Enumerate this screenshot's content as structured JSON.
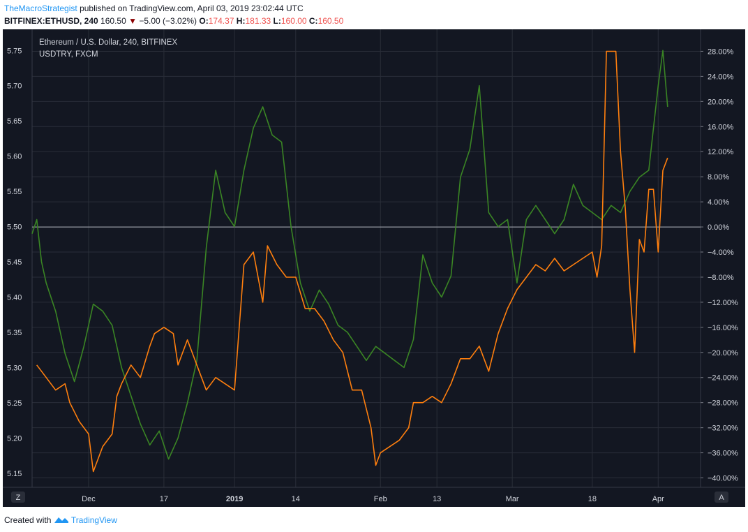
{
  "header": {
    "author": "TheMacroStrategist",
    "published_text": "published on TradingView.com, April 03, 2019 23:02:44 UTC",
    "symbol": "BITFINEX:ETHUSD, 240",
    "last_price": "160.50",
    "change_text": "−5.00 (−3.02%)",
    "o_label": "O:",
    "o_value": "174.37",
    "h_label": "H:",
    "h_value": "181.33",
    "l_label": "L:",
    "l_value": "160.00",
    "c_label": "C:",
    "c_value": "160.50"
  },
  "footer": {
    "created_with": "Created with",
    "brand": "TradingView"
  },
  "colors": {
    "background": "#131722",
    "grid": "#2a2e39",
    "text": "#d1d4dc",
    "ethereum_line": "#ff7f0e",
    "usdtry_line": "#3a8524",
    "zero_line": "#b2b5be",
    "accent": "#2196f3"
  },
  "chart_data": {
    "type": "line",
    "legend_placement": "top-left",
    "grid": true,
    "legend": [
      "Ethereum / U.S. Dollar, 240, BITFINEX",
      "USDTRY, FXCM"
    ],
    "x_ticks": [
      "Dec",
      "17",
      "2019",
      "14",
      "Feb",
      "13",
      "Mar",
      "18",
      "Apr"
    ],
    "x_range": [
      "2018-11-19",
      "2019-04-10"
    ],
    "left_axis": {
      "ticks": [
        "5.75",
        "5.70",
        "5.65",
        "5.60",
        "5.55",
        "5.50",
        "5.45",
        "5.40",
        "5.35",
        "5.30",
        "5.25",
        "5.20",
        "5.15"
      ],
      "ylim": [
        5.13,
        5.78
      ]
    },
    "right_axis": {
      "ticks": [
        "28.00%",
        "24.00%",
        "20.00%",
        "16.00%",
        "12.00%",
        "8.00%",
        "4.00%",
        "0.00%",
        "−4.00%",
        "−8.00%",
        "−12.00%",
        "−16.00%",
        "−20.00%",
        "−24.00%",
        "−28.00%",
        "−32.00%",
        "−36.00%",
        "−40.00%"
      ],
      "ylim": [
        -41.5,
        31.5
      ]
    },
    "axis_corner_labels": {
      "left": "Z",
      "right": "A"
    },
    "series": [
      {
        "name": "Ethereum / U.S. Dollar, 240, BITFINEX",
        "axis": "right",
        "unit": "%",
        "x": [
          "2018-11-20",
          "2018-11-21",
          "2018-11-22",
          "2018-11-24",
          "2018-11-26",
          "2018-11-27",
          "2018-11-29",
          "2018-12-01",
          "2018-12-02",
          "2018-12-04",
          "2018-12-06",
          "2018-12-07",
          "2018-12-08",
          "2018-12-10",
          "2018-12-12",
          "2018-12-14",
          "2018-12-15",
          "2018-12-17",
          "2018-12-19",
          "2018-12-20",
          "2018-12-22",
          "2018-12-24",
          "2018-12-26",
          "2018-12-28",
          "2018-12-30",
          "2019-01-01",
          "2019-01-03",
          "2019-01-05",
          "2019-01-07",
          "2019-01-08",
          "2019-01-10",
          "2019-01-12",
          "2019-01-14",
          "2019-01-16",
          "2019-01-18",
          "2019-01-20",
          "2019-01-22",
          "2019-01-24",
          "2019-01-26",
          "2019-01-28",
          "2019-01-30",
          "2019-01-31",
          "2019-02-01",
          "2019-02-03",
          "2019-02-05",
          "2019-02-07",
          "2019-02-08",
          "2019-02-10",
          "2019-02-12",
          "2019-02-14",
          "2019-02-16",
          "2019-02-18",
          "2019-02-20",
          "2019-02-22",
          "2019-02-24",
          "2019-02-26",
          "2019-02-28",
          "2019-03-02",
          "2019-03-04",
          "2019-03-06",
          "2019-03-08",
          "2019-03-10",
          "2019-03-12",
          "2019-03-14",
          "2019-03-16",
          "2019-03-18",
          "2019-03-19",
          "2019-03-20",
          "2019-03-21",
          "2019-03-22",
          "2019-03-23",
          "2019-03-24",
          "2019-03-25",
          "2019-03-26",
          "2019-03-27",
          "2019-03-28",
          "2019-03-29",
          "2019-03-30",
          "2019-03-31",
          "2019-04-01",
          "2019-04-02",
          "2019-04-03"
        ],
        "values": [
          -22,
          -23,
          -24,
          -26,
          -25,
          -28,
          -31,
          -33,
          -39,
          -35,
          -33,
          -27,
          -25,
          -22,
          -24,
          -19,
          -17,
          -16,
          -17,
          -22,
          -18,
          -22,
          -26,
          -24,
          -25,
          -26,
          -6,
          -4,
          -12,
          -3,
          -6,
          -8,
          -8,
          -13,
          -13,
          -15,
          -18,
          -20,
          -26,
          -26,
          -32,
          -38,
          -36,
          -35,
          -34,
          -32,
          -28,
          -28,
          -27,
          -28,
          -25,
          -21,
          -21,
          -19,
          -23,
          -17,
          -13,
          -10,
          -8,
          -6,
          -7,
          -5,
          -7,
          -6,
          -5,
          -4,
          -8,
          -3,
          28,
          28,
          28,
          12,
          3,
          -10,
          -20,
          -2,
          -4,
          6,
          6,
          -4,
          9,
          11
        ]
      },
      {
        "name": "USDTRY, FXCM",
        "axis": "left",
        "unit": "TRY",
        "x": [
          "2018-11-19",
          "2018-11-20",
          "2018-11-21",
          "2018-11-22",
          "2018-11-24",
          "2018-11-26",
          "2018-11-28",
          "2018-11-30",
          "2018-12-02",
          "2018-12-04",
          "2018-12-06",
          "2018-12-08",
          "2018-12-10",
          "2018-12-12",
          "2018-12-14",
          "2018-12-16",
          "2018-12-18",
          "2018-12-20",
          "2018-12-22",
          "2018-12-24",
          "2018-12-26",
          "2018-12-28",
          "2018-12-30",
          "2019-01-01",
          "2019-01-03",
          "2019-01-05",
          "2019-01-07",
          "2019-01-09",
          "2019-01-11",
          "2019-01-13",
          "2019-01-15",
          "2019-01-17",
          "2019-01-19",
          "2019-01-21",
          "2019-01-23",
          "2019-01-25",
          "2019-01-27",
          "2019-01-29",
          "2019-01-31",
          "2019-02-02",
          "2019-02-04",
          "2019-02-06",
          "2019-02-08",
          "2019-02-10",
          "2019-02-12",
          "2019-02-14",
          "2019-02-16",
          "2019-02-18",
          "2019-02-20",
          "2019-02-22",
          "2019-02-24",
          "2019-02-26",
          "2019-02-28",
          "2019-03-02",
          "2019-03-04",
          "2019-03-06",
          "2019-03-08",
          "2019-03-10",
          "2019-03-12",
          "2019-03-14",
          "2019-03-16",
          "2019-03-18",
          "2019-03-20",
          "2019-03-22",
          "2019-03-24",
          "2019-03-26",
          "2019-03-28",
          "2019-03-30",
          "2019-04-01",
          "2019-04-02",
          "2019-04-03"
        ],
        "values": [
          5.49,
          5.51,
          5.45,
          5.42,
          5.38,
          5.32,
          5.28,
          5.33,
          5.39,
          5.38,
          5.36,
          5.3,
          5.26,
          5.22,
          5.19,
          5.21,
          5.17,
          5.2,
          5.25,
          5.31,
          5.47,
          5.58,
          5.52,
          5.5,
          5.58,
          5.64,
          5.67,
          5.63,
          5.62,
          5.5,
          5.42,
          5.38,
          5.41,
          5.39,
          5.36,
          5.35,
          5.33,
          5.31,
          5.33,
          5.32,
          5.31,
          5.3,
          5.34,
          5.46,
          5.42,
          5.4,
          5.43,
          5.57,
          5.61,
          5.7,
          5.52,
          5.5,
          5.51,
          5.42,
          5.51,
          5.53,
          5.51,
          5.49,
          5.51,
          5.56,
          5.53,
          5.52,
          5.51,
          5.53,
          5.52,
          5.55,
          5.57,
          5.58,
          5.7,
          5.75,
          5.67
        ]
      }
    ],
    "zero_line_value_percent": 0
  }
}
